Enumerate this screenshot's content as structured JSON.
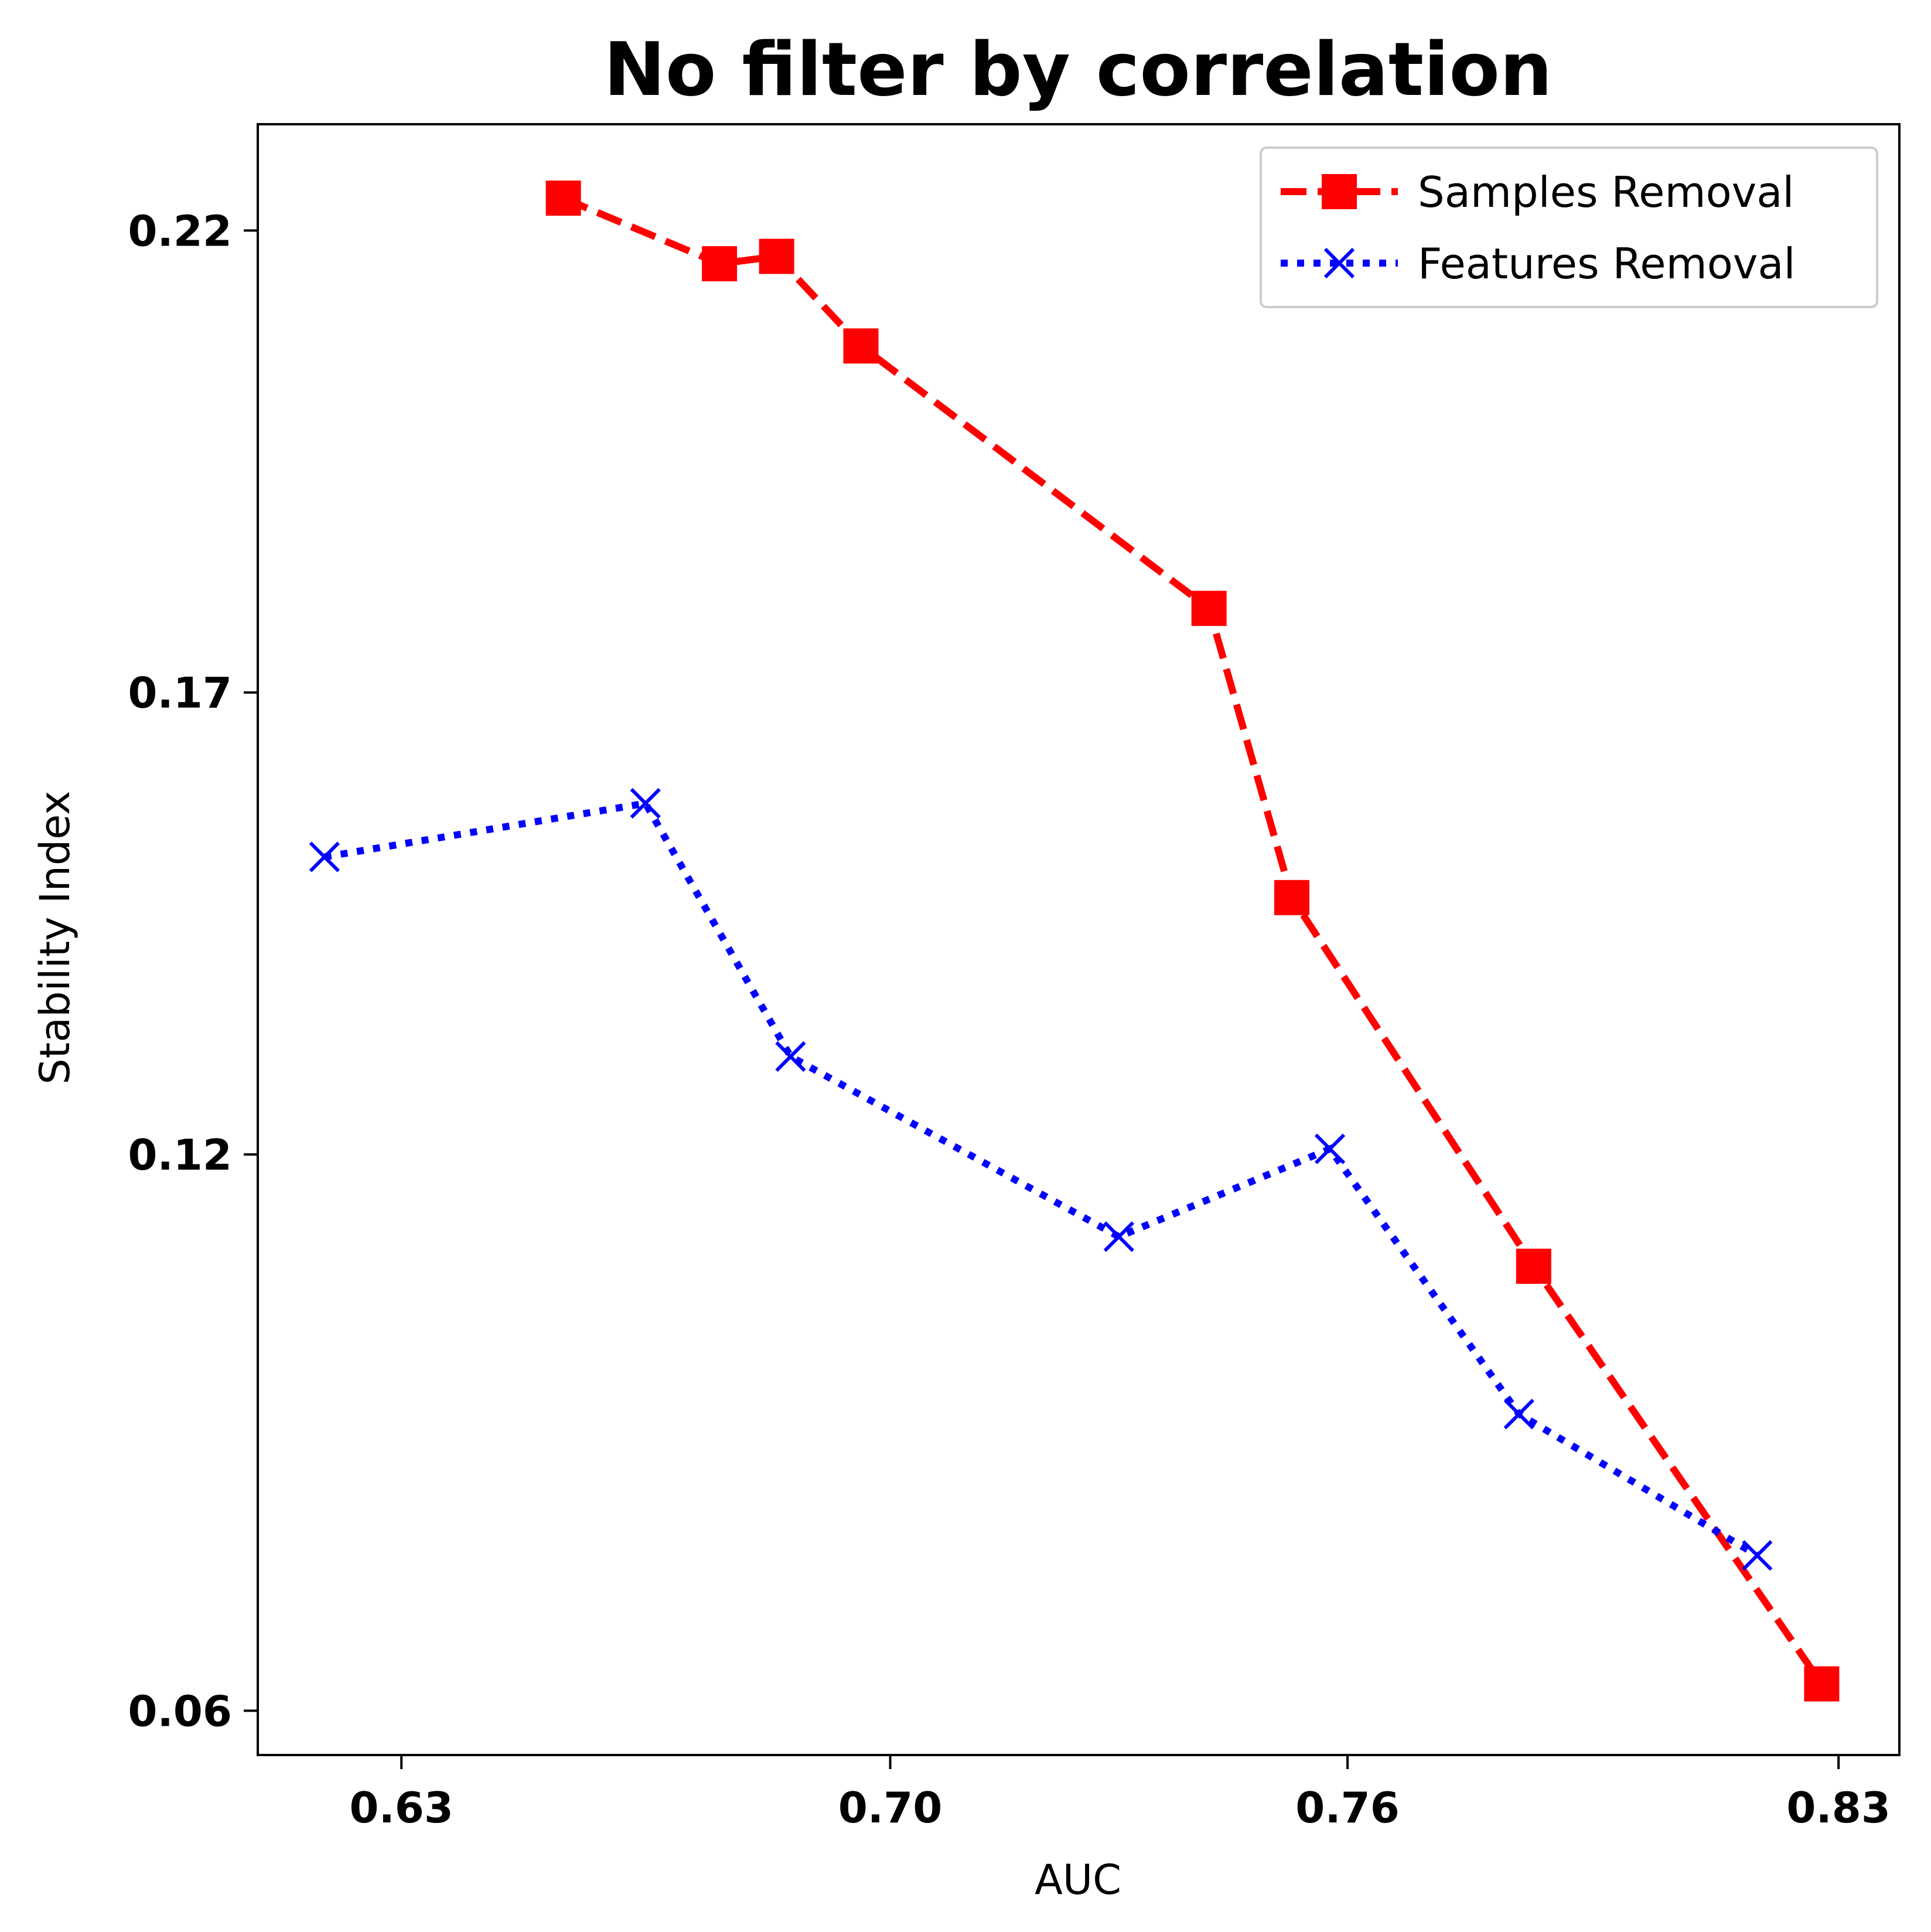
{
  "chart_data": {
    "type": "line",
    "title": "No filter by correlation",
    "xlabel": "AUC",
    "ylabel": "Stability Index",
    "xlim": [
      0.614,
      0.838
    ],
    "ylim": [
      0.055,
      0.2315
    ],
    "xticks": [
      0.6336,
      0.7003,
      0.7627,
      0.8297
    ],
    "xtick_labels": [
      "0.63",
      "0.70",
      "0.76",
      "0.83"
    ],
    "yticks": [
      0.0598,
      0.12,
      0.17,
      0.22
    ],
    "ytick_labels": [
      "0.06",
      "0.12",
      "0.17",
      "0.22"
    ],
    "legend_position": "top-right",
    "grid": false,
    "series": [
      {
        "name": "Samples Removal",
        "color": "#ff0000",
        "line_style": "dashed",
        "marker": "square",
        "x": [
          0.6557,
          0.677,
          0.6848,
          0.6963,
          0.7438,
          0.7551,
          0.7881,
          0.8274
        ],
        "y": [
          0.2235,
          0.2164,
          0.2172,
          0.2075,
          0.1791,
          0.1478,
          0.1079,
          0.0627
        ]
      },
      {
        "name": "Features Removal",
        "color": "#0000ff",
        "line_style": "dotted",
        "marker": "x",
        "x": [
          0.6231,
          0.6669,
          0.6867,
          0.7315,
          0.7603,
          0.7861,
          0.8186
        ],
        "y": [
          0.1522,
          0.158,
          0.1306,
          0.1111,
          0.1206,
          0.0919,
          0.0766
        ]
      }
    ]
  }
}
